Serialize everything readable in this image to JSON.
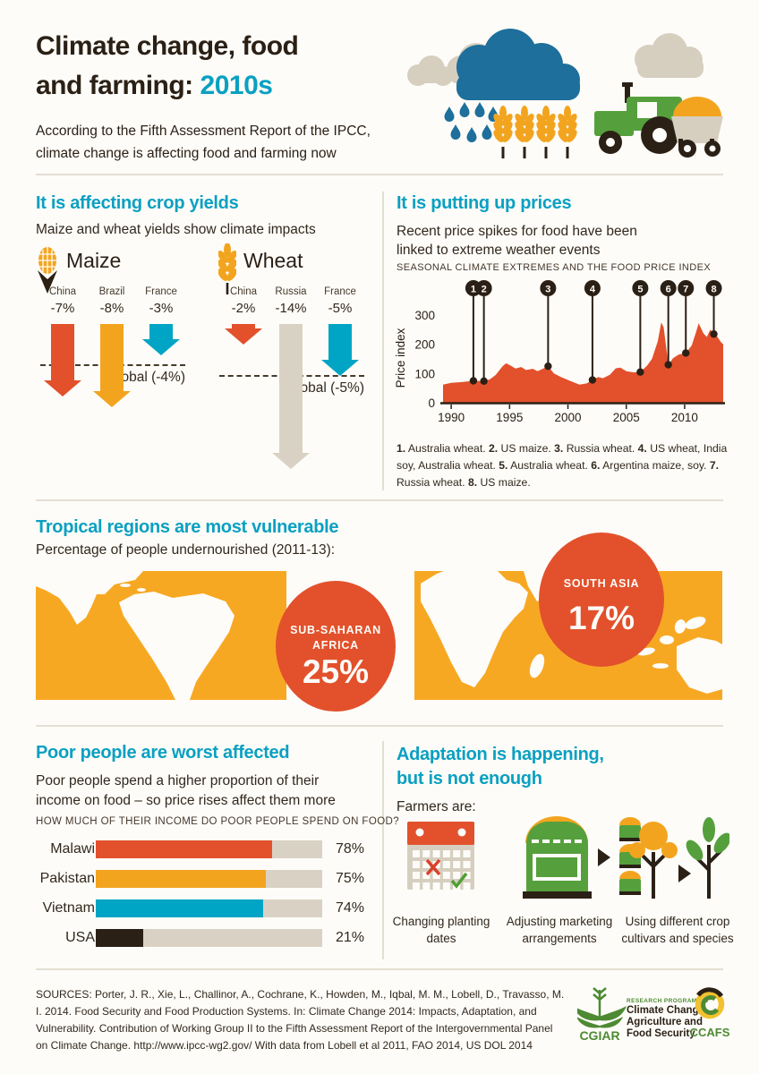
{
  "header": {
    "title_line1": "Climate change, food",
    "title_line2_prefix": "and farming: ",
    "title_highlight": "2010s",
    "intro_line1": "According to the Fifth Assessment Report of the IPCC,",
    "intro_line2": "climate change is affecting food and farming now"
  },
  "colors": {
    "cyan": "#0ba0c2",
    "red": "#e2512c",
    "yellow": "#f3a41f",
    "map_orange": "#f7a823",
    "teal": "#00a5c5",
    "beige": "#d9d2c4",
    "dark": "#2b2016",
    "blue": "#1e6f9b",
    "green": "#55a03c",
    "logo_green": "#4d8a33"
  },
  "crop_section": {
    "title": "It is affecting crop yields",
    "subtitle": "Maize and wheat yields show climate impacts",
    "groups": [
      {
        "name": "Maize",
        "global_label": "Global (-4%)",
        "global_pct": 4,
        "items": [
          {
            "country": "China",
            "label": "-7%",
            "pct": 7,
            "color": "#e2512c"
          },
          {
            "country": "Brazil",
            "label": "-8%",
            "pct": 8,
            "color": "#f3a41f"
          },
          {
            "country": "France",
            "label": "-3%",
            "pct": 3,
            "color": "#00a5c5"
          }
        ]
      },
      {
        "name": "Wheat",
        "global_label": "Global (-5%)",
        "global_pct": 5,
        "items": [
          {
            "country": "China",
            "label": "-2%",
            "pct": 2,
            "color": "#e2512c"
          },
          {
            "country": "Russia",
            "label": "-14%",
            "pct": 14,
            "color": "#d9d2c4"
          },
          {
            "country": "France",
            "label": "-5%",
            "pct": 5,
            "color": "#00a5c5"
          }
        ]
      }
    ]
  },
  "price_section": {
    "title": "It is putting up prices",
    "subtitle_line1": "Recent price spikes for food have been",
    "subtitle_line2": "linked to extreme weather events",
    "footnote": [
      {
        "n": "1.",
        "t": "Australia wheat."
      },
      {
        "n": "2.",
        "t": "US maize."
      },
      {
        "n": "3.",
        "t": "Russia wheat."
      },
      {
        "n": "4.",
        "t": "US wheat, India soy, Australia wheat."
      },
      {
        "n": "5.",
        "t": "Australia wheat."
      },
      {
        "n": "6.",
        "t": "Argentina maize, soy."
      },
      {
        "n": "7.",
        "t": "Russia wheat."
      },
      {
        "n": "8.",
        "t": "US maize."
      }
    ]
  },
  "map_section": {
    "title": "Tropical regions are most vulnerable",
    "subtitle": "Percentage of people undernourished (2011-13):",
    "circles": [
      {
        "region_line1": "SUB-SAHARAN",
        "region_line2": "AFRICA",
        "value": "25%"
      },
      {
        "region_line1": "SOUTH ASIA",
        "region_line2": "",
        "value": "17%"
      }
    ]
  },
  "poor_section": {
    "title": "Poor people are worst affected",
    "subtitle_line1": "Poor people spend a higher proportion of their",
    "subtitle_line2": "income on food – so price rises affect them more"
  },
  "adaptation_section": {
    "title_line1": "Adaptation is happening,",
    "title_line2": "but is not enough",
    "lead": "Farmers are:",
    "items": [
      {
        "icon": "calendar-icon",
        "caption": "Changing planting dates"
      },
      {
        "icon": "market-icon",
        "caption": "Adjusting marketing arrangements"
      },
      {
        "icon": "trees-icon",
        "caption": "Using different crop cultivars and species"
      }
    ]
  },
  "footer": {
    "sources": "SOURCES: Porter, J. R., Xie, L., Challinor, A., Cochrane, K., Howden, M., Iqbal, M. M., Lobell, D., Travasso, M. I. 2014. Food Security and Food Production Systems. In: Climate Change 2014: Impacts, Adaptation, and Vulnerability. Contribution of Working Group II to the Fifth Assessment Report of the Intergovernmental Panel on Climate Change. http://www.ipcc-wg2.gov/ With data from Lobell et al 2011, FAO 2014, US DOL 2014",
    "logos": {
      "cgiar": "CGIAR",
      "program_small": "RESEARCH PROGRAM ON",
      "program_line1": "Climate Change,",
      "program_line2": "Agriculture and",
      "program_line3": "Food Security",
      "ccafs": "CCAFS"
    }
  },
  "chart_data": [
    {
      "type": "area",
      "title": "SEASONAL CLIMATE EXTREMES AND THE FOOD PRICE INDEX",
      "ylabel": "Price index",
      "yticks": [
        0,
        100,
        200,
        300
      ],
      "xticks": [
        1990,
        1995,
        2000,
        2005,
        2010
      ],
      "xlim": [
        1989.3,
        2013.3
      ],
      "ylim": [
        0,
        360
      ],
      "area_color": "#e2512c",
      "series_name": "Food price index",
      "points": [
        [
          1989.3,
          62
        ],
        [
          1990,
          68
        ],
        [
          1991,
          71
        ],
        [
          1991.9,
          75
        ],
        [
          1992.8,
          74
        ],
        [
          1993.3,
          80
        ],
        [
          1993.8,
          95
        ],
        [
          1994.4,
          125
        ],
        [
          1994.7,
          135
        ],
        [
          1995.1,
          127
        ],
        [
          1995.5,
          117
        ],
        [
          1996,
          122
        ],
        [
          1996.4,
          112
        ],
        [
          1997,
          116
        ],
        [
          1997.4,
          108
        ],
        [
          1998.3,
          125
        ],
        [
          1998.8,
          100
        ],
        [
          1999.4,
          88
        ],
        [
          2000,
          78
        ],
        [
          2000.6,
          68
        ],
        [
          2001,
          62
        ],
        [
          2001.6,
          66
        ],
        [
          2002.1,
          78
        ],
        [
          2002.6,
          88
        ],
        [
          2003,
          84
        ],
        [
          2003.6,
          96
        ],
        [
          2004.1,
          118
        ],
        [
          2004.5,
          120
        ],
        [
          2005,
          108
        ],
        [
          2005.6,
          104
        ],
        [
          2006.2,
          105
        ],
        [
          2006.8,
          128
        ],
        [
          2007.2,
          150
        ],
        [
          2007.7,
          210
        ],
        [
          2008,
          275
        ],
        [
          2008.2,
          258
        ],
        [
          2008.6,
          130
        ],
        [
          2009,
          152
        ],
        [
          2009.5,
          165
        ],
        [
          2010.1,
          170
        ],
        [
          2010.6,
          196
        ],
        [
          2011,
          245
        ],
        [
          2011.2,
          272
        ],
        [
          2011.6,
          238
        ],
        [
          2011.9,
          225
        ],
        [
          2012.2,
          250
        ],
        [
          2012.5,
          235
        ],
        [
          2012.8,
          226
        ],
        [
          2013.1,
          208
        ],
        [
          2013.3,
          200
        ]
      ],
      "markers": [
        {
          "n": 1,
          "x": 1991.9,
          "y": 75
        },
        {
          "n": 2,
          "x": 1992.8,
          "y": 74
        },
        {
          "n": 3,
          "x": 1998.3,
          "y": 125
        },
        {
          "n": 4,
          "x": 2002.1,
          "y": 78
        },
        {
          "n": 5,
          "x": 2006.2,
          "y": 105
        },
        {
          "n": 6,
          "x": 2008.6,
          "y": 130
        },
        {
          "n": 7,
          "x": 2010.1,
          "y": 170
        },
        {
          "n": 8,
          "x": 2012.5,
          "y": 235
        }
      ]
    },
    {
      "type": "bar",
      "caption": "HOW MUCH OF THEIR INCOME DO POOR PEOPLE SPEND ON FOOD?",
      "categories": [
        "Malawi",
        "Pakistan",
        "Vietnam",
        "USA"
      ],
      "values": [
        78,
        75,
        74,
        21
      ],
      "value_labels": [
        "78%",
        "75%",
        "74%",
        "21%"
      ],
      "colors": [
        "#e2512c",
        "#f3a41f",
        "#00a5c5",
        "#2b2016"
      ],
      "track_color": "#d9d2c4",
      "xlim": [
        0,
        100
      ]
    }
  ]
}
